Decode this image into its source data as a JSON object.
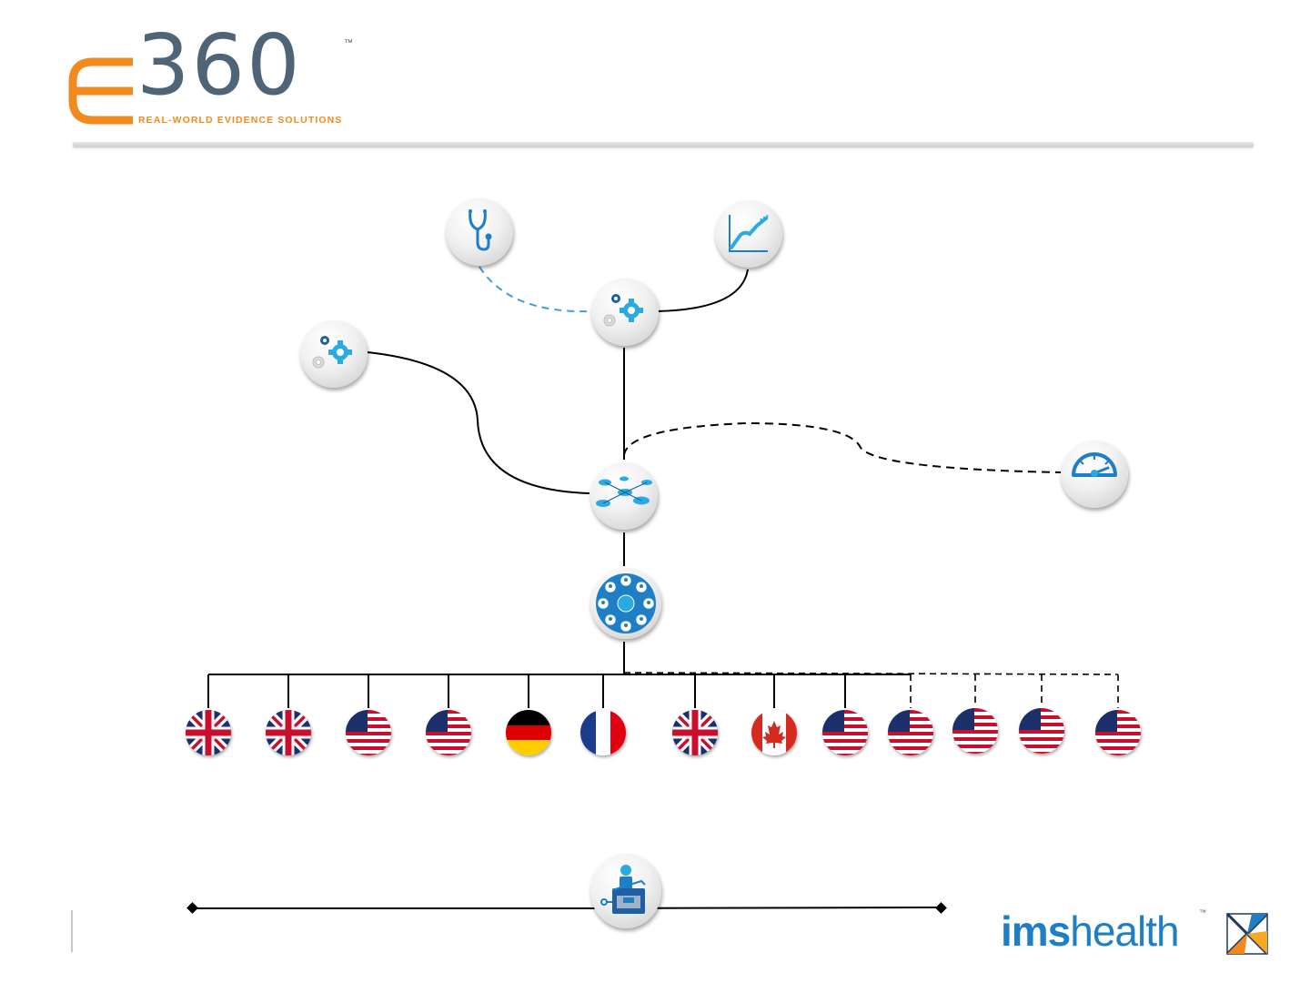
{
  "header": {
    "logo_digits": "360",
    "logo_tm": "™",
    "logo_tagline": "REAL-WORLD EVIDENCE SOLUTIONS"
  },
  "footer": {
    "brand_ims": "ims",
    "brand_health": "health",
    "brand_tm": "™"
  },
  "colors": {
    "accent_orange": "#f28a20",
    "slate": "#4f6577",
    "icon_blue": "#1e7fc6",
    "icon_light_blue": "#29abe2",
    "dashed_link_blue": "#3aa0e8"
  },
  "diagram": {
    "nodes": [
      {
        "id": "clinical",
        "icon": "stethoscope-icon"
      },
      {
        "id": "analytics",
        "icon": "growth-chart-icon"
      },
      {
        "id": "processing-top",
        "icon": "gears-icon"
      },
      {
        "id": "processing-left",
        "icon": "gears-icon"
      },
      {
        "id": "data-model",
        "icon": "database-network-icon"
      },
      {
        "id": "dashboard",
        "icon": "speedometer-icon"
      },
      {
        "id": "network",
        "icon": "people-network-icon"
      },
      {
        "id": "secure-access",
        "icon": "user-safe-icon"
      }
    ],
    "flags": [
      {
        "country": "UK",
        "icon": "uk-flag-icon",
        "link": "solid"
      },
      {
        "country": "UK",
        "icon": "uk-flag-icon",
        "link": "solid"
      },
      {
        "country": "USA",
        "icon": "us-flag-icon",
        "link": "solid"
      },
      {
        "country": "USA",
        "icon": "us-flag-icon",
        "link": "solid"
      },
      {
        "country": "Germany",
        "icon": "germany-flag-icon",
        "link": "solid"
      },
      {
        "country": "France",
        "icon": "france-flag-icon",
        "link": "solid"
      },
      {
        "country": "UK",
        "icon": "uk-flag-icon",
        "link": "solid"
      },
      {
        "country": "Canada",
        "icon": "canada-flag-icon",
        "link": "solid"
      },
      {
        "country": "USA",
        "icon": "us-flag-icon",
        "link": "solid"
      },
      {
        "country": "USA",
        "icon": "us-flag-icon",
        "link": "solid-dashed"
      },
      {
        "country": "USA",
        "icon": "us-flag-icon",
        "link": "dashed"
      },
      {
        "country": "USA",
        "icon": "us-flag-icon",
        "link": "dashed"
      },
      {
        "country": "USA",
        "icon": "us-flag-icon",
        "link": "dashed"
      }
    ]
  }
}
